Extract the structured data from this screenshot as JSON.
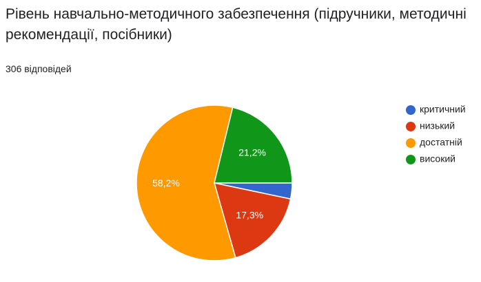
{
  "chart_data": {
    "type": "pie",
    "title": "Рівень навчально-методичного забезпечення (підручники, методичні рекомендації, посібники)",
    "subtitle": "306 відповідей",
    "categories": [
      "критичний",
      "низький",
      "достатній",
      "високий"
    ],
    "values": [
      3.3,
      17.3,
      58.2,
      21.2
    ],
    "value_labels": [
      null,
      "17,3%",
      "58,2%",
      "21,2%"
    ],
    "colors": [
      "#3366cc",
      "#dc3912",
      "#ff9900",
      "#109618"
    ],
    "legend": "right"
  }
}
